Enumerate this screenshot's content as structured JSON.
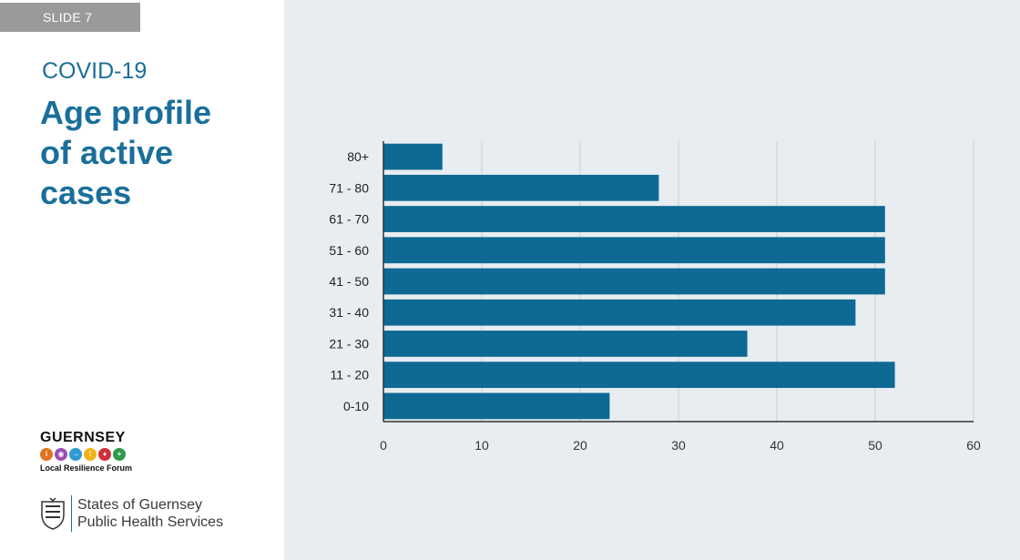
{
  "slide_tag": "SLIDE 7",
  "eyebrow": "COVID-19",
  "headline_lines": [
    "Age profile",
    "of active",
    "cases"
  ],
  "logos": {
    "lrf_title": "GUERNSEY",
    "lrf_sub": "Local Resilience Forum",
    "lrf_icon_colors": [
      "#e2731f",
      "#9a4fb0",
      "#2f9bd3",
      "#f2b31a",
      "#d12f3a",
      "#2e9a4a"
    ],
    "sog_line1": "States of Guernsey",
    "sog_line2": "Public Health Services"
  },
  "colors": {
    "accent": "#1a6f9a",
    "bar": "#0e6a94",
    "grid": "#c9ced3",
    "axis": "#333333"
  },
  "chart_data": {
    "type": "bar",
    "orientation": "horizontal",
    "categories": [
      "80+",
      "71 - 80",
      "61 - 70",
      "51 - 60",
      "41 - 50",
      "31 - 40",
      "21 - 30",
      "11 - 20",
      "0-10"
    ],
    "values": [
      6,
      28,
      51,
      51,
      51,
      48,
      37,
      52,
      23
    ],
    "xlim": [
      0,
      60
    ],
    "xticks": [
      0,
      10,
      20,
      30,
      40,
      50,
      60
    ],
    "title": "",
    "xlabel": "",
    "ylabel": "",
    "grid": "vertical"
  }
}
